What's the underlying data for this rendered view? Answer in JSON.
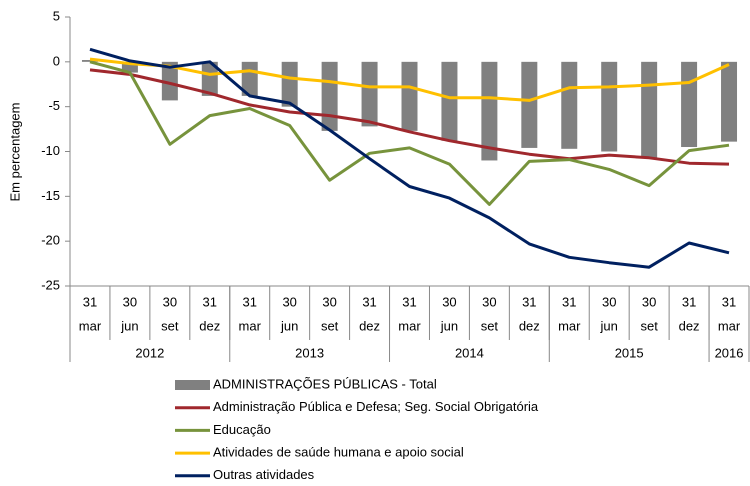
{
  "chart_data": {
    "type": "bar-line",
    "y_label": "Em percentagem",
    "categories": [
      {
        "day": "31",
        "month": "mar"
      },
      {
        "day": "30",
        "month": "jun"
      },
      {
        "day": "30",
        "month": "set"
      },
      {
        "day": "31",
        "month": "dez"
      },
      {
        "day": "31",
        "month": "mar"
      },
      {
        "day": "30",
        "month": "jun"
      },
      {
        "day": "30",
        "month": "set"
      },
      {
        "day": "31",
        "month": "dez"
      },
      {
        "day": "31",
        "month": "mar"
      },
      {
        "day": "30",
        "month": "jun"
      },
      {
        "day": "30",
        "month": "set"
      },
      {
        "day": "31",
        "month": "dez"
      },
      {
        "day": "31",
        "month": "mar"
      },
      {
        "day": "30",
        "month": "jun"
      },
      {
        "day": "30",
        "month": "set"
      },
      {
        "day": "31",
        "month": "dez"
      },
      {
        "day": "31",
        "month": "mar"
      }
    ],
    "year_groups": [
      {
        "label": "2012",
        "span": 4
      },
      {
        "label": "2013",
        "span": 4
      },
      {
        "label": "2014",
        "span": 4
      },
      {
        "label": "2015",
        "span": 4
      },
      {
        "label": "2016",
        "span": 1
      }
    ],
    "series": [
      {
        "name": "ADMINISTRAÇÕES PÚBLICAS - Total",
        "kind": "bar",
        "color": "#808080",
        "values": [
          0.2,
          -1.2,
          -4.3,
          -3.8,
          -3.8,
          -5.0,
          -7.7,
          -7.2,
          -7.7,
          -8.8,
          -11.0,
          -9.6,
          -9.7,
          -10.0,
          -10.7,
          -9.5,
          -8.9
        ]
      },
      {
        "name": "Administração Pública e Defesa; Seg. Social Obrigatória",
        "kind": "line",
        "color": "#a0282d",
        "values": [
          -0.9,
          -1.4,
          -2.4,
          -3.5,
          -4.8,
          -5.6,
          -6.0,
          -6.7,
          -7.8,
          -8.8,
          -9.6,
          -10.3,
          -10.8,
          -10.4,
          -10.7,
          -11.3,
          -11.4
        ]
      },
      {
        "name": "Educação",
        "kind": "line",
        "color": "#77933c",
        "values": [
          0,
          -1.2,
          -9.2,
          -6.0,
          -5.2,
          -7.1,
          -13.2,
          -10.2,
          -9.6,
          -11.4,
          -15.9,
          -11.1,
          -10.9,
          -12.0,
          -13.8,
          -9.9,
          -9.3
        ]
      },
      {
        "name": "Atividades de saúde humana e apoio social",
        "kind": "line",
        "color": "#ffc000",
        "values": [
          0.3,
          -0.2,
          -0.5,
          -1.4,
          -1.0,
          -1.8,
          -2.2,
          -2.8,
          -2.8,
          -4.0,
          -4.0,
          -4.3,
          -2.9,
          -2.8,
          -2.6,
          -2.3,
          -0.3
        ]
      },
      {
        "name": "Outras atividades",
        "kind": "line",
        "color": "#002060",
        "values": [
          1.4,
          0.1,
          -0.6,
          0,
          -3.8,
          -4.6,
          -7.6,
          -10.8,
          -13.9,
          -15.2,
          -17.4,
          -20.3,
          -21.8,
          -22.4,
          -22.9,
          -20.2,
          -21.3
        ]
      }
    ],
    "ylim": [
      -25,
      5
    ],
    "yticks": [
      5,
      0,
      -5,
      -10,
      -15,
      -20,
      -25
    ],
    "grid": false
  }
}
